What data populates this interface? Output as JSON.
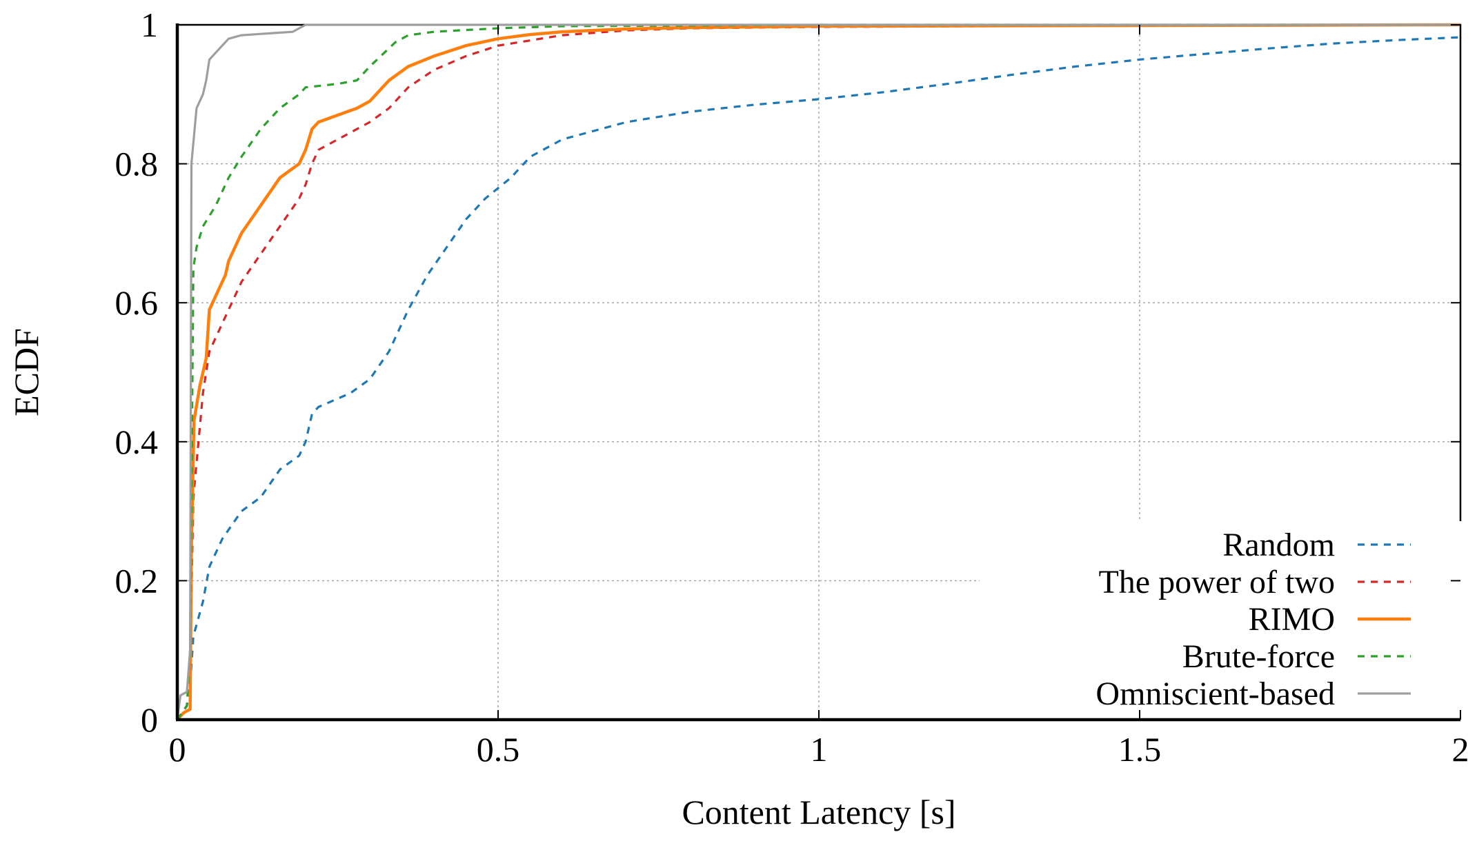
{
  "chart_data": {
    "type": "line",
    "title": "",
    "xlabel": "Content Latency [s]",
    "ylabel": "ECDF",
    "xlim": [
      0,
      2
    ],
    "ylim": [
      0,
      1
    ],
    "xticks": [
      0,
      0.5,
      1,
      1.5,
      2
    ],
    "xtick_labels": [
      "0",
      "0.5",
      "1",
      "1.5",
      "2"
    ],
    "yticks": [
      0,
      0.2,
      0.4,
      0.6,
      0.8,
      1
    ],
    "ytick_labels": [
      "0",
      "0.2",
      "0.4",
      "0.6",
      "0.8",
      "1"
    ],
    "grid": true,
    "legend_position": "bottom-right",
    "series": [
      {
        "name": "Random",
        "color": "#1f77b4",
        "style": "dashed",
        "points": [
          [
            0,
            0
          ],
          [
            0.015,
            0.02
          ],
          [
            0.02,
            0.05
          ],
          [
            0.025,
            0.12
          ],
          [
            0.04,
            0.17
          ],
          [
            0.05,
            0.22
          ],
          [
            0.07,
            0.26
          ],
          [
            0.1,
            0.3
          ],
          [
            0.13,
            0.32
          ],
          [
            0.16,
            0.36
          ],
          [
            0.19,
            0.38
          ],
          [
            0.2,
            0.4
          ],
          [
            0.21,
            0.44
          ],
          [
            0.22,
            0.45
          ],
          [
            0.27,
            0.47
          ],
          [
            0.3,
            0.49
          ],
          [
            0.33,
            0.53
          ],
          [
            0.36,
            0.59
          ],
          [
            0.39,
            0.64
          ],
          [
            0.42,
            0.68
          ],
          [
            0.45,
            0.72
          ],
          [
            0.48,
            0.75
          ],
          [
            0.52,
            0.78
          ],
          [
            0.55,
            0.81
          ],
          [
            0.6,
            0.835
          ],
          [
            0.7,
            0.86
          ],
          [
            0.8,
            0.875
          ],
          [
            0.9,
            0.885
          ],
          [
            1.0,
            0.893
          ],
          [
            1.1,
            0.903
          ],
          [
            1.2,
            0.915
          ],
          [
            1.3,
            0.928
          ],
          [
            1.4,
            0.94
          ],
          [
            1.5,
            0.95
          ],
          [
            1.6,
            0.958
          ],
          [
            1.7,
            0.966
          ],
          [
            1.8,
            0.973
          ],
          [
            1.9,
            0.978
          ],
          [
            2.0,
            0.982
          ]
        ]
      },
      {
        "name": "The power of two",
        "color": "#d62728",
        "style": "dashed",
        "points": [
          [
            0,
            0
          ],
          [
            0.015,
            0.02
          ],
          [
            0.02,
            0.08
          ],
          [
            0.025,
            0.32
          ],
          [
            0.035,
            0.42
          ],
          [
            0.04,
            0.47
          ],
          [
            0.05,
            0.53
          ],
          [
            0.07,
            0.57
          ],
          [
            0.1,
            0.63
          ],
          [
            0.13,
            0.67
          ],
          [
            0.16,
            0.71
          ],
          [
            0.19,
            0.75
          ],
          [
            0.2,
            0.77
          ],
          [
            0.21,
            0.8
          ],
          [
            0.22,
            0.82
          ],
          [
            0.26,
            0.84
          ],
          [
            0.3,
            0.86
          ],
          [
            0.33,
            0.88
          ],
          [
            0.36,
            0.91
          ],
          [
            0.4,
            0.935
          ],
          [
            0.45,
            0.955
          ],
          [
            0.5,
            0.97
          ],
          [
            0.6,
            0.985
          ],
          [
            0.7,
            0.992
          ],
          [
            0.8,
            0.995
          ],
          [
            1.0,
            0.997
          ],
          [
            1.5,
            0.999
          ],
          [
            2.0,
            1.0
          ]
        ]
      },
      {
        "name": "RIMO",
        "color": "#ff7f0e",
        "style": "solid",
        "points": [
          [
            0,
            0
          ],
          [
            0.01,
            0.01
          ],
          [
            0.02,
            0.015
          ],
          [
            0.022,
            0.25
          ],
          [
            0.026,
            0.43
          ],
          [
            0.035,
            0.48
          ],
          [
            0.045,
            0.52
          ],
          [
            0.05,
            0.59
          ],
          [
            0.06,
            0.61
          ],
          [
            0.075,
            0.64
          ],
          [
            0.08,
            0.66
          ],
          [
            0.1,
            0.7
          ],
          [
            0.13,
            0.74
          ],
          [
            0.16,
            0.78
          ],
          [
            0.19,
            0.8
          ],
          [
            0.2,
            0.82
          ],
          [
            0.21,
            0.85
          ],
          [
            0.22,
            0.86
          ],
          [
            0.25,
            0.87
          ],
          [
            0.28,
            0.88
          ],
          [
            0.3,
            0.89
          ],
          [
            0.33,
            0.92
          ],
          [
            0.36,
            0.94
          ],
          [
            0.4,
            0.955
          ],
          [
            0.45,
            0.97
          ],
          [
            0.5,
            0.98
          ],
          [
            0.55,
            0.986
          ],
          [
            0.6,
            0.99
          ],
          [
            0.7,
            0.994
          ],
          [
            0.8,
            0.996
          ],
          [
            1.0,
            0.998
          ],
          [
            2.0,
            1.0
          ]
        ]
      },
      {
        "name": "Brute-force",
        "color": "#2ca02c",
        "style": "dashed",
        "points": [
          [
            0,
            0
          ],
          [
            0.015,
            0.02
          ],
          [
            0.02,
            0.1
          ],
          [
            0.025,
            0.65
          ],
          [
            0.03,
            0.68
          ],
          [
            0.04,
            0.71
          ],
          [
            0.06,
            0.74
          ],
          [
            0.08,
            0.78
          ],
          [
            0.1,
            0.81
          ],
          [
            0.13,
            0.85
          ],
          [
            0.16,
            0.88
          ],
          [
            0.19,
            0.9
          ],
          [
            0.2,
            0.91
          ],
          [
            0.25,
            0.915
          ],
          [
            0.28,
            0.92
          ],
          [
            0.3,
            0.94
          ],
          [
            0.34,
            0.975
          ],
          [
            0.36,
            0.985
          ],
          [
            0.4,
            0.99
          ],
          [
            0.5,
            0.995
          ],
          [
            0.6,
            0.998
          ],
          [
            1.0,
            1.0
          ],
          [
            2.0,
            1.0
          ]
        ]
      },
      {
        "name": "Omniscient-based",
        "color": "#9e9e9e",
        "style": "solid",
        "points": [
          [
            0,
            0
          ],
          [
            0.005,
            0.035
          ],
          [
            0.015,
            0.04
          ],
          [
            0.02,
            0.1
          ],
          [
            0.022,
            0.8
          ],
          [
            0.03,
            0.88
          ],
          [
            0.04,
            0.9
          ],
          [
            0.045,
            0.92
          ],
          [
            0.05,
            0.95
          ],
          [
            0.06,
            0.96
          ],
          [
            0.07,
            0.97
          ],
          [
            0.08,
            0.98
          ],
          [
            0.1,
            0.985
          ],
          [
            0.18,
            0.99
          ],
          [
            0.19,
            0.995
          ],
          [
            0.2,
            1.0
          ],
          [
            2.0,
            1.0
          ]
        ]
      }
    ]
  }
}
